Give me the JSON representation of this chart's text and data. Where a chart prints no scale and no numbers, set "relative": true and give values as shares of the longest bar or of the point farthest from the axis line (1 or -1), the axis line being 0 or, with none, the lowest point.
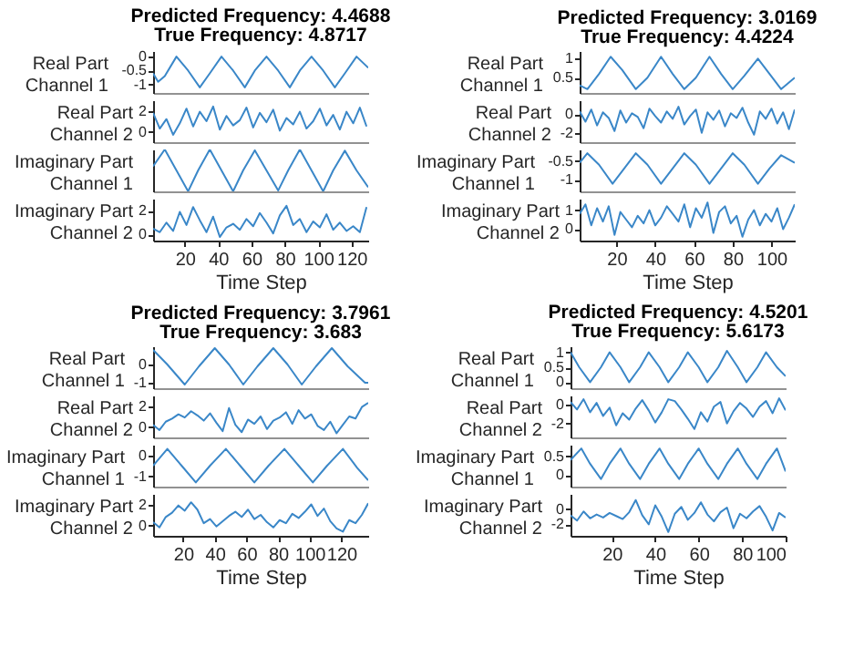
{
  "chart_data": [
    {
      "type": "line",
      "title": "Predicted Frequency: 4.4688",
      "subtitle": "True Frequency: 4.8717",
      "ylabel": "Real Part\nChannel 1",
      "x": [
        1,
        4,
        8,
        15,
        22,
        29,
        35,
        42,
        49,
        56,
        62,
        69,
        76,
        83,
        89,
        96,
        103,
        110,
        116,
        123,
        130
      ],
      "series": [
        {
          "color": "#3a87c8",
          "values": [
            -0.6,
            -0.9,
            -0.7,
            0,
            -0.5,
            -1.1,
            -0.6,
            0,
            -0.5,
            -1.1,
            -0.5,
            0,
            -0.5,
            -1.1,
            -0.5,
            0,
            -0.5,
            -1.1,
            -0.6,
            0,
            -0.4
          ]
        }
      ],
      "xlim": [
        1,
        130
      ],
      "ylim": [
        -1.3,
        0.2
      ],
      "yticks": [
        -1,
        -0.5,
        0
      ],
      "tick_labels": "y"
    },
    {
      "type": "line",
      "ylabel": "Real Part\nChannel 2",
      "x": [
        1,
        5,
        9,
        13,
        17,
        21,
        25,
        29,
        33,
        37,
        41,
        45,
        49,
        53,
        57,
        61,
        65,
        69,
        73,
        77,
        81,
        85,
        89,
        93,
        97,
        101,
        105,
        109,
        113,
        117,
        121,
        125,
        129
      ],
      "series": [
        {
          "color": "#3a87c8",
          "values": [
            1.8,
            0.3,
            1.2,
            -0.3,
            0.8,
            2.2,
            0.5,
            1.9,
            1.0,
            2.4,
            0.2,
            1.5,
            0.6,
            1.1,
            2.3,
            0.4,
            1.8,
            0.9,
            2.1,
            0.1,
            1.3,
            0.7,
            1.9,
            0.3,
            1.0,
            2.2,
            0.6,
            1.6,
            0.2,
            1.9,
            0.8,
            2.3,
            0.5
          ]
        }
      ],
      "xlim": [
        1,
        130
      ],
      "ylim": [
        -1,
        3
      ],
      "yticks": [
        0,
        2
      ],
      "tick_labels": "y"
    },
    {
      "type": "line",
      "ylabel": "Imaginary Part\nChannel 1",
      "relative": true,
      "x": [
        1,
        8,
        15,
        22,
        28,
        35,
        42,
        49,
        55,
        62,
        69,
        76,
        82,
        89,
        96,
        103,
        109,
        116,
        123,
        130
      ],
      "series": [
        {
          "color": "#3a87c8",
          "values": [
            0.6,
            1,
            0.5,
            0,
            0.5,
            1,
            0.5,
            0,
            0.5,
            0.98,
            0.5,
            0.02,
            0.5,
            1,
            0.5,
            0,
            0.5,
            0.97,
            0.5,
            0.1
          ]
        }
      ],
      "xlim": [
        1,
        130
      ],
      "tick_labels": false
    },
    {
      "type": "line",
      "ylabel": "Imaginary Part\nChannel 2",
      "xlabel": "Time Step",
      "x": [
        1,
        5,
        9,
        13,
        17,
        21,
        25,
        29,
        33,
        37,
        41,
        45,
        49,
        53,
        57,
        61,
        65,
        69,
        73,
        77,
        81,
        85,
        89,
        93,
        97,
        101,
        105,
        109,
        113,
        117,
        121,
        125,
        129
      ],
      "series": [
        {
          "color": "#3a87c8",
          "values": [
            0.5,
            0.2,
            1.0,
            0.3,
            1.9,
            0.8,
            2.3,
            1.2,
            0.2,
            1.5,
            -0.2,
            0.6,
            0.9,
            0.4,
            1.3,
            0.7,
            1.8,
            1.0,
            0.1,
            1.6,
            2.4,
            0.8,
            1.3,
            0.2,
            1.1,
            0.6,
            1.7,
            0.4,
            1.0,
            0.3,
            0.7,
            0.2,
            2.3
          ]
        }
      ],
      "xlim": [
        1,
        130
      ],
      "xticks": [
        20,
        40,
        60,
        80,
        100,
        120
      ],
      "ylim": [
        -0.5,
        3
      ],
      "yticks": [
        0,
        2
      ]
    },
    {
      "type": "line",
      "title": "Predicted Frequency: 3.0169",
      "subtitle": "True Frequency: 4.4224",
      "ylabel": "Real Part\nChannel 1",
      "x": [
        1,
        5,
        11,
        17,
        23,
        30,
        36,
        43,
        49,
        55,
        61,
        68,
        74,
        80,
        86,
        93,
        99,
        105,
        112
      ],
      "series": [
        {
          "color": "#3a87c8",
          "values": [
            0.3,
            0.2,
            0.6,
            1.05,
            0.7,
            0.2,
            0.5,
            1.05,
            0.6,
            0.2,
            0.5,
            1.05,
            0.6,
            0.2,
            0.55,
            1.0,
            0.6,
            0.2,
            0.5
          ]
        }
      ],
      "xlim": [
        1,
        112
      ],
      "ylim": [
        0.1,
        1.2
      ],
      "yticks": [
        0.5,
        1
      ],
      "tick_labels": "y"
    },
    {
      "type": "line",
      "ylabel": "Real Part\nChannel 2",
      "x": [
        1,
        4,
        7,
        10,
        13,
        16,
        19,
        22,
        25,
        28,
        31,
        34,
        37,
        40,
        43,
        46,
        49,
        52,
        55,
        58,
        61,
        64,
        67,
        70,
        73,
        76,
        79,
        82,
        85,
        88,
        91,
        94,
        97,
        100,
        103,
        106,
        109,
        112
      ],
      "series": [
        {
          "color": "#3a87c8",
          "values": [
            0.3,
            -0.8,
            0.5,
            -1.2,
            0.2,
            -0.4,
            -1.8,
            0.4,
            -0.9,
            0.1,
            -0.3,
            -1.5,
            0.6,
            -0.2,
            -0.9,
            0.3,
            -0.5,
            0.8,
            -1.1,
            -0.2,
            0.5,
            -2.0,
            0.2,
            -0.6,
            0.4,
            -1.3,
            0.1,
            -0.4,
            0.7,
            -0.9,
            -2.2,
            0.3,
            -0.5,
            0.6,
            -1.0,
            0.2,
            -1.6,
            0.5
          ]
        }
      ],
      "xlim": [
        1,
        112
      ],
      "ylim": [
        -3,
        1.5
      ],
      "yticks": [
        -2,
        0
      ],
      "tick_labels": "y"
    },
    {
      "type": "line",
      "ylabel": "Imaginary Part\nChannel 1",
      "x": [
        1,
        5,
        11,
        18,
        24,
        30,
        36,
        43,
        49,
        55,
        61,
        68,
        74,
        80,
        86,
        93,
        99,
        105,
        112
      ],
      "series": [
        {
          "color": "#3a87c8",
          "values": [
            -0.55,
            -0.3,
            -0.6,
            -1.1,
            -0.7,
            -0.3,
            -0.6,
            -1.1,
            -0.7,
            -0.3,
            -0.6,
            -1.1,
            -0.7,
            -0.3,
            -0.6,
            -1.1,
            -0.7,
            -0.35,
            -0.55
          ]
        }
      ],
      "xlim": [
        1,
        112
      ],
      "ylim": [
        -1.3,
        -0.2
      ],
      "yticks": [
        -1,
        -0.5
      ],
      "tick_labels": "y"
    },
    {
      "type": "line",
      "ylabel": "Imaginary Part\nChannel 2",
      "xlabel": "Time Step",
      "x": [
        1,
        4,
        7,
        10,
        13,
        16,
        19,
        22,
        25,
        28,
        31,
        34,
        37,
        40,
        43,
        46,
        49,
        52,
        55,
        58,
        61,
        64,
        67,
        70,
        73,
        76,
        79,
        82,
        85,
        88,
        91,
        94,
        97,
        100,
        103,
        106,
        109,
        112
      ],
      "series": [
        {
          "color": "#3a87c8",
          "values": [
            0.8,
            1.3,
            0.2,
            1.1,
            0.4,
            1.2,
            -0.3,
            0.9,
            0.5,
            0.1,
            0.7,
            0.3,
            1.0,
            0.2,
            0.6,
            1.2,
            0.8,
            0.4,
            1.3,
            0.1,
            1.1,
            0.6,
            1.4,
            -0.2,
            0.9,
            1.2,
            0.3,
            0.7,
            -0.4,
            0.5,
            1.0,
            0.2,
            0.8,
            0.4,
            1.1,
            0.0,
            0.6,
            1.3
          ]
        }
      ],
      "xlim": [
        1,
        112
      ],
      "xticks": [
        20,
        40,
        60,
        80,
        100
      ],
      "ylim": [
        -0.6,
        1.6
      ],
      "yticks": [
        0,
        1
      ]
    },
    {
      "type": "line",
      "title": "Predicted Frequency: 3.7961",
      "subtitle": "True Frequency: 3.683",
      "ylabel": "Real Part\nChannel 1",
      "x": [
        1,
        10,
        21,
        30,
        40,
        49,
        58,
        67,
        77,
        86,
        95,
        104,
        114,
        124,
        135,
        137
      ],
      "series": [
        {
          "color": "#3a87c8",
          "values": [
            0.8,
            0,
            -1.1,
            -0.1,
            0.9,
            0,
            -1.1,
            -0.1,
            0.9,
            0,
            -1.1,
            -0.1,
            0.9,
            -0.1,
            -1,
            -1.0
          ]
        }
      ],
      "xlim": [
        1,
        137
      ],
      "ylim": [
        -1.3,
        1
      ],
      "yticks": [
        -1,
        0
      ],
      "tick_labels": "y"
    },
    {
      "type": "line",
      "ylabel": "Real Part\nChannel 2",
      "x": [
        1,
        5,
        9,
        13,
        17,
        21,
        25,
        29,
        33,
        37,
        41,
        45,
        49,
        53,
        57,
        61,
        65,
        69,
        73,
        77,
        81,
        85,
        89,
        93,
        97,
        101,
        105,
        109,
        113,
        117,
        121,
        125,
        129,
        133,
        137
      ],
      "series": [
        {
          "color": "#3a87c8",
          "values": [
            0.2,
            -0.3,
            0.5,
            0.8,
            1.2,
            0.9,
            1.5,
            1.1,
            0.6,
            1.3,
            0.4,
            -0.4,
            1.8,
            0.2,
            -0.5,
            0.7,
            0.3,
            1.0,
            -0.2,
            0.6,
            0.9,
            1.4,
            0.3,
            1.6,
            0.8,
            1.2,
            0.1,
            -0.3,
            0.5,
            -0.6,
            0.2,
            1.0,
            0.8,
            1.9,
            2.3
          ]
        }
      ],
      "xlim": [
        1,
        137
      ],
      "ylim": [
        -1,
        3
      ],
      "yticks": [
        0,
        2
      ],
      "tick_labels": "y"
    },
    {
      "type": "line",
      "ylabel": "Imaginary Part\nChannel 1",
      "x": [
        1,
        10,
        19,
        28,
        37,
        47,
        56,
        65,
        74,
        84,
        93,
        102,
        111,
        121,
        130,
        137
      ],
      "series": [
        {
          "color": "#3a87c8",
          "values": [
            -0.5,
            0.3,
            -0.5,
            -1.3,
            -0.5,
            0.3,
            -0.5,
            -1.3,
            -0.5,
            0.3,
            -0.5,
            -1.3,
            -0.5,
            0.3,
            -0.6,
            -1.2
          ]
        }
      ],
      "xlim": [
        1,
        137
      ],
      "ylim": [
        -1.5,
        0.5
      ],
      "yticks": [
        -1,
        0
      ],
      "tick_labels": "y"
    },
    {
      "type": "line",
      "ylabel": "Imaginary Part\nChannel 2",
      "xlabel": "Time Step",
      "x": [
        1,
        5,
        9,
        13,
        17,
        21,
        25,
        29,
        33,
        37,
        41,
        45,
        49,
        53,
        57,
        61,
        65,
        69,
        73,
        77,
        81,
        85,
        89,
        93,
        97,
        101,
        105,
        109,
        113,
        117,
        121,
        125,
        129,
        133,
        137
      ],
      "series": [
        {
          "color": "#3a87c8",
          "values": [
            0.3,
            -0.2,
            0.8,
            1.2,
            1.9,
            1.4,
            2.2,
            1.5,
            0.2,
            0.6,
            -0.1,
            0.4,
            0.9,
            1.3,
            0.8,
            1.5,
            0.6,
            1.0,
            0.3,
            -0.2,
            0.5,
            0.2,
            1.1,
            0.7,
            1.3,
            2.0,
            0.9,
            1.6,
            0.4,
            -0.3,
            -0.6,
            0.5,
            0.2,
            1.0,
            2.1
          ]
        }
      ],
      "xlim": [
        1,
        137
      ],
      "xticks": [
        20,
        40,
        60,
        80,
        100,
        120
      ],
      "ylim": [
        -1,
        3
      ],
      "yticks": [
        0,
        2
      ]
    },
    {
      "type": "line",
      "title": "Predicted Frequency: 4.5201",
      "subtitle": "True Frequency: 5.6173",
      "ylabel": "Real Part\nChannel 1",
      "x": [
        1,
        5,
        10,
        15,
        19,
        24,
        28,
        33,
        37,
        42,
        46,
        51,
        55,
        60,
        64,
        69,
        73,
        78,
        82,
        87,
        91,
        96,
        100
      ],
      "series": [
        {
          "color": "#3a87c8",
          "values": [
            1.0,
            0.5,
            0,
            0.5,
            1.0,
            0.5,
            0,
            0.5,
            1.0,
            0.5,
            0,
            0.5,
            1.0,
            0.5,
            0,
            0.5,
            1.05,
            0.5,
            0,
            0.5,
            1.0,
            0.5,
            0.2
          ]
        }
      ],
      "xlim": [
        1,
        100
      ],
      "ylim": [
        -0.2,
        1.2
      ],
      "yticks": [
        0,
        0.5,
        1
      ],
      "tick_labels": "y"
    },
    {
      "type": "line",
      "ylabel": "Real Part\nChannel 2",
      "x": [
        1,
        4,
        7,
        10,
        13,
        16,
        19,
        22,
        25,
        28,
        31,
        34,
        37,
        40,
        43,
        46,
        49,
        52,
        55,
        58,
        61,
        64,
        67,
        70,
        73,
        76,
        79,
        82,
        85,
        88,
        91,
        94,
        97,
        100
      ],
      "series": [
        {
          "color": "#3a87c8",
          "values": [
            0.3,
            -0.5,
            0.6,
            -0.8,
            0.2,
            -1.2,
            -0.3,
            -2.2,
            -0.9,
            -1.6,
            -0.4,
            0.5,
            -0.6,
            -1.9,
            -0.8,
            0.6,
            0.4,
            -0.5,
            -1.5,
            -2.6,
            -0.8,
            -1.8,
            -0.2,
            0.3,
            -2.0,
            -0.7,
            0.2,
            -0.4,
            -1.3,
            -0.2,
            0.4,
            -0.9,
            0.7,
            -0.6
          ]
        }
      ],
      "xlim": [
        1,
        100
      ],
      "ylim": [
        -3.5,
        1
      ],
      "yticks": [
        -2,
        0
      ],
      "tick_labels": "y"
    },
    {
      "type": "line",
      "ylabel": "Imaginary Part\nChannel 1",
      "x": [
        1,
        6,
        10,
        15,
        19,
        24,
        28,
        33,
        37,
        42,
        46,
        51,
        55,
        60,
        64,
        69,
        73,
        78,
        82,
        87,
        91,
        96,
        100
      ],
      "series": [
        {
          "color": "#3a87c8",
          "values": [
            0.4,
            0.7,
            0.3,
            -0.1,
            0.3,
            0.7,
            0.3,
            -0.1,
            0.3,
            0.7,
            0.3,
            -0.1,
            0.3,
            0.7,
            0.3,
            -0.1,
            0.3,
            0.7,
            0.3,
            -0.1,
            0.3,
            0.7,
            0.1
          ]
        }
      ],
      "xlim": [
        1,
        100
      ],
      "ylim": [
        -0.3,
        0.8
      ],
      "yticks": [
        0,
        0.5
      ],
      "tick_labels": "y"
    },
    {
      "type": "line",
      "ylabel": "Imaginary Part\nChannel 2",
      "xlabel": "Time Step",
      "x": [
        1,
        4,
        7,
        10,
        13,
        16,
        19,
        22,
        25,
        28,
        31,
        34,
        37,
        40,
        43,
        46,
        49,
        52,
        55,
        58,
        61,
        64,
        67,
        70,
        73,
        76,
        79,
        82,
        85,
        88,
        91,
        94,
        97,
        100
      ],
      "series": [
        {
          "color": "#3a87c8",
          "values": [
            -0.8,
            -1.5,
            -0.3,
            -1.2,
            -0.7,
            -1.1,
            -0.5,
            -0.9,
            -1.3,
            -0.4,
            1.2,
            -0.8,
            -2.0,
            0.5,
            -1.0,
            -3.0,
            -0.6,
            0.3,
            -1.4,
            -0.5,
            0.9,
            -0.7,
            -1.6,
            -0.4,
            0.2,
            -2.5,
            -0.6,
            -1.2,
            -0.3,
            0.4,
            -1.0,
            -2.8,
            -0.5,
            -1.1
          ]
        }
      ],
      "xlim": [
        1,
        100
      ],
      "xticks": [
        20,
        40,
        60,
        80,
        100
      ],
      "ylim": [
        -3.5,
        2
      ],
      "yticks": [
        -2,
        0
      ]
    }
  ]
}
